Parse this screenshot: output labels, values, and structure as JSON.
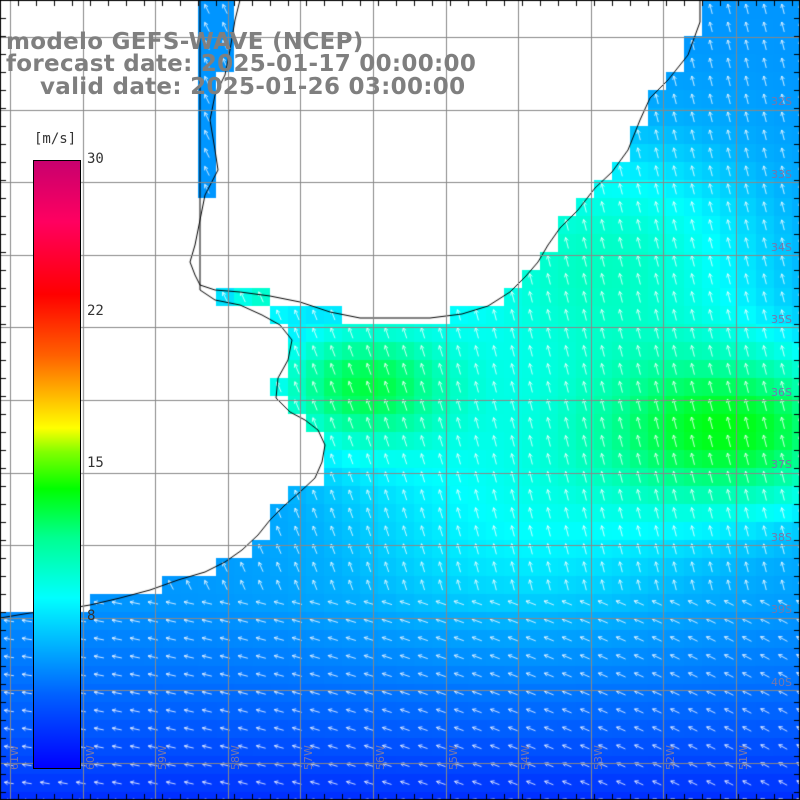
{
  "header": {
    "title": "modelo GEFS-WAVE (NCEP)",
    "forecast": "forecast date: 2025-01-17 00:00:00",
    "valid": "valid date: 2025-01-26 03:00:00"
  },
  "colorbar": {
    "unit": "[m/s]",
    "ticks": [
      "30",
      "22",
      "15",
      "8"
    ],
    "min": 0,
    "max": 30,
    "stops": [
      {
        "v": 0,
        "color": "#0000ff"
      },
      {
        "v": 3,
        "color": "#0060ff"
      },
      {
        "v": 6,
        "color": "#00b0ff"
      },
      {
        "v": 8,
        "color": "#00ffff"
      },
      {
        "v": 11,
        "color": "#00ff90"
      },
      {
        "v": 14,
        "color": "#00ff00"
      },
      {
        "v": 16,
        "color": "#80ff00"
      },
      {
        "v": 17,
        "color": "#ffff00"
      },
      {
        "v": 19,
        "color": "#ffb000"
      },
      {
        "v": 21,
        "color": "#ff6000"
      },
      {
        "v": 23,
        "color": "#ff0000"
      },
      {
        "v": 27,
        "color": "#ff0060"
      },
      {
        "v": 30,
        "color": "#c8006e"
      }
    ]
  },
  "lon_labels": [
    "61W",
    "60W",
    "59W",
    "58W",
    "57W",
    "56W",
    "55W",
    "54W",
    "53W",
    "52W",
    "51W"
  ],
  "lat_labels": [
    "32S",
    "33S",
    "34S",
    "35S",
    "36S",
    "37S",
    "38S",
    "39S",
    "40S"
  ],
  "colors": {
    "land": "#ffffff",
    "coast": "#000000",
    "grid": "#888888",
    "arrow": "#ffffff",
    "label": "#7f7f7f"
  }
}
